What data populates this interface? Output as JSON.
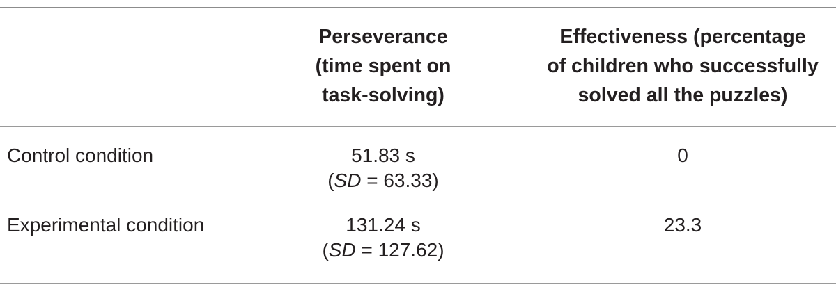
{
  "table": {
    "headers": {
      "perseverance": [
        "Perseverance",
        "(time spent on",
        "task-solving)"
      ],
      "effectiveness": [
        "Effectiveness (percentage",
        "of children who successfully",
        "solved all the puzzles)"
      ]
    },
    "rows": [
      {
        "label": "Control condition",
        "perseverance_value": "51.83 s",
        "sd_open": "(",
        "sd_label": "SD",
        "sd_rest": " = 63.33)",
        "effectiveness_value": "0"
      },
      {
        "label": "Experimental condition",
        "perseverance_value": "131.24 s",
        "sd_open": "(",
        "sd_label": "SD",
        "sd_rest": " = 127.62)",
        "effectiveness_value": "23.3"
      }
    ]
  }
}
